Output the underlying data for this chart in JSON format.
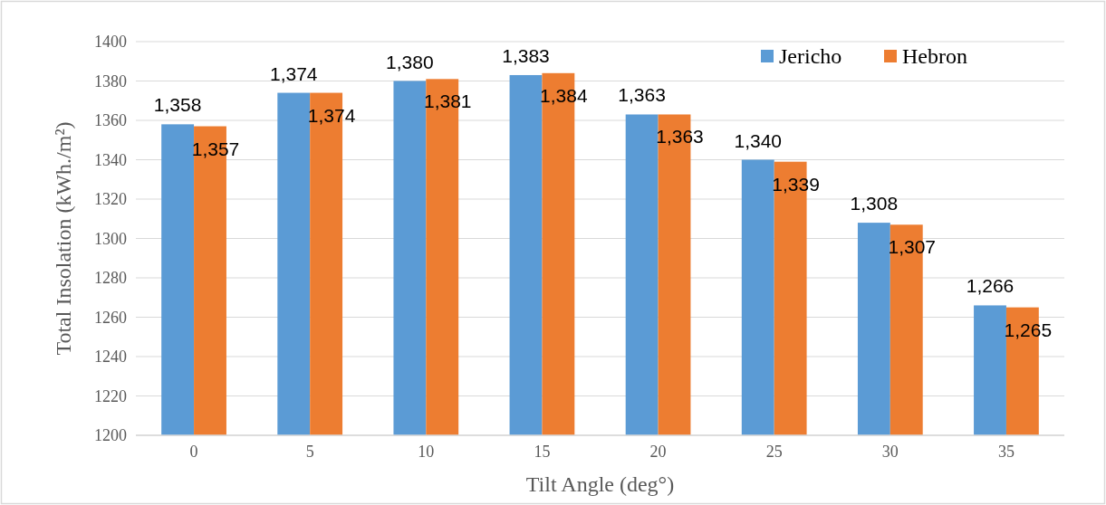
{
  "chart_data": {
    "type": "bar",
    "xlabel": "Tilt Angle (deg°)",
    "ylabel": "Total Insolation (kWh./m²)",
    "categories": [
      "0",
      "5",
      "10",
      "15",
      "20",
      "25",
      "30",
      "35"
    ],
    "series": [
      {
        "name": "Jericho",
        "color": "#5b9bd5",
        "values": [
          1358,
          1374,
          1380,
          1383,
          1363,
          1340,
          1308,
          1266
        ],
        "value_labels": [
          "1,358",
          "1,374",
          "1,380",
          "1,383",
          "1,363",
          "1,340",
          "1,308",
          "1,266"
        ]
      },
      {
        "name": "Hebron",
        "color": "#ed7d31",
        "values": [
          1357,
          1374,
          1381,
          1384,
          1363,
          1339,
          1307,
          1265
        ],
        "value_labels": [
          "1,357",
          "1,374",
          "1,381",
          "1,384",
          "1,363",
          "1,339",
          "1,307",
          "1,265"
        ]
      }
    ],
    "ylim": [
      1200,
      1400
    ],
    "yticks": [
      1200,
      1220,
      1240,
      1260,
      1280,
      1300,
      1320,
      1340,
      1360,
      1380,
      1400
    ],
    "grid": "y",
    "legend": "top right"
  }
}
